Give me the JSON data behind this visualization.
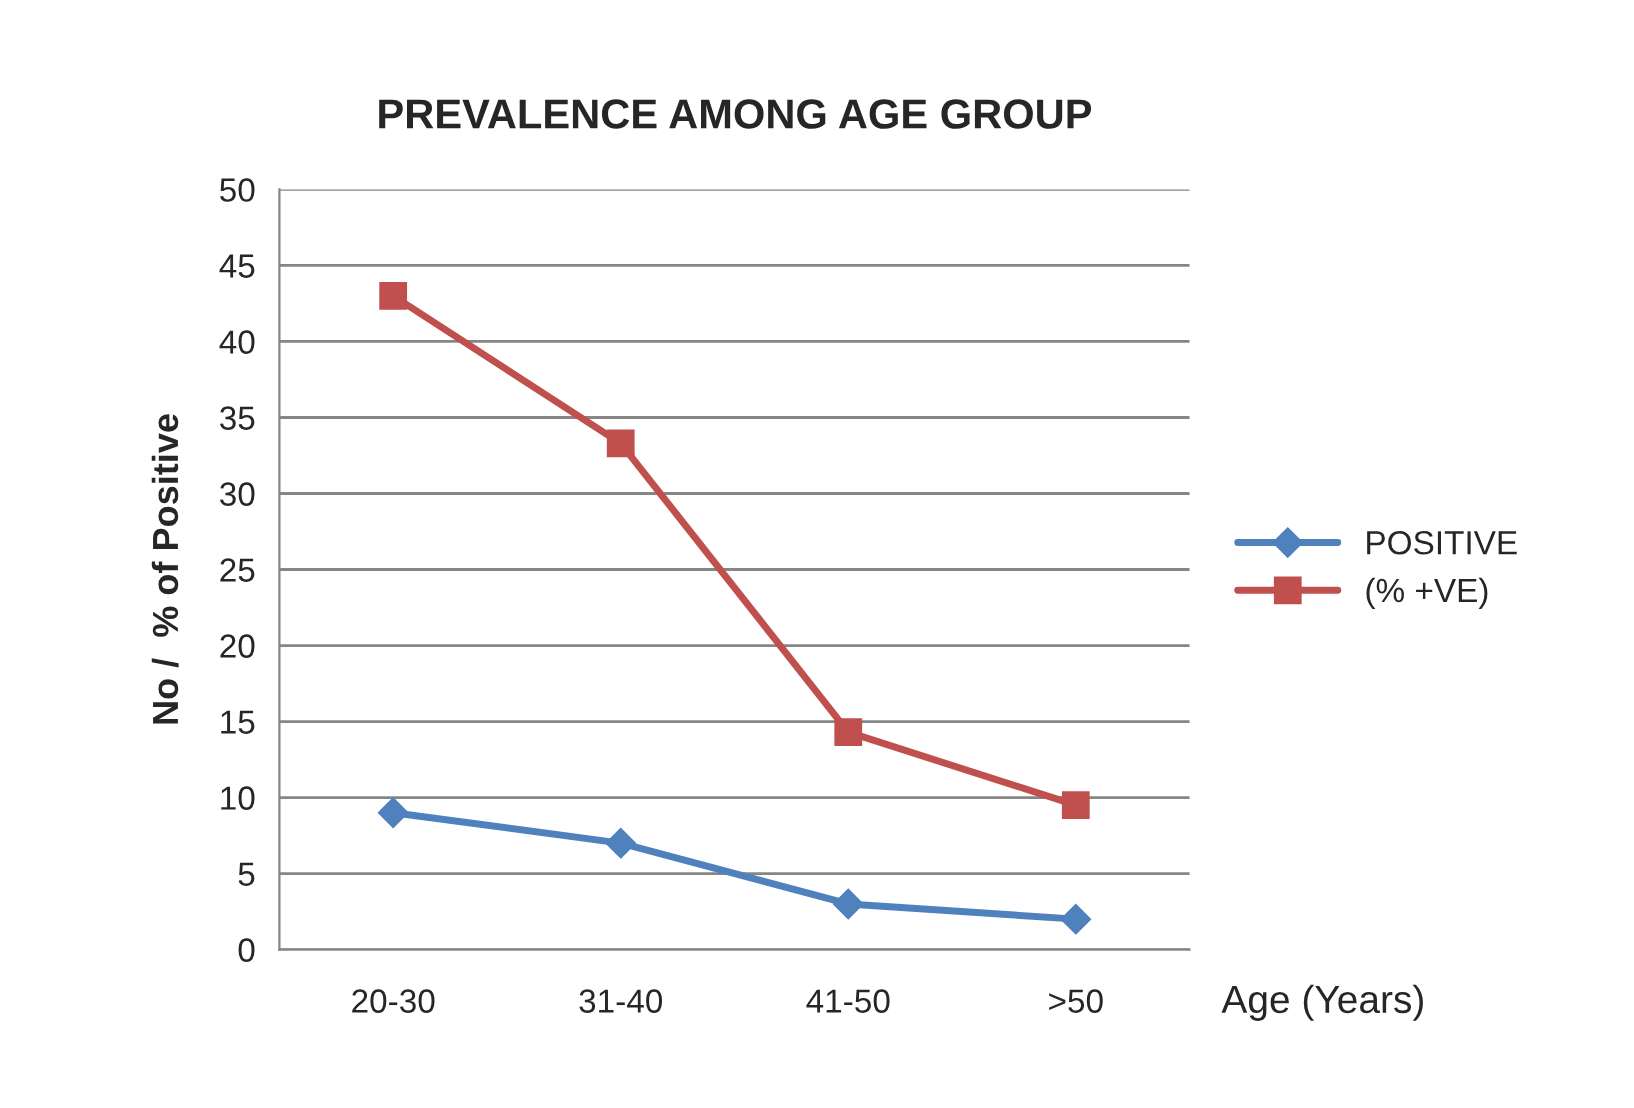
{
  "chart_data": {
    "type": "line",
    "title": "PREVALENCE AMONG AGE GROUP",
    "xlabel": "Age (Years)",
    "ylabel": "No /  % of Positive",
    "categories": [
      "20-30",
      "31-40",
      "41-50",
      ">50"
    ],
    "series": [
      {
        "name": "POSITIVE",
        "color": "#4f81bd",
        "values": [
          9,
          7,
          3,
          2
        ],
        "marker": "diamond"
      },
      {
        "name": "(% +VE)",
        "color": "#c0504d",
        "values": [
          43,
          33.3,
          14.3,
          9.5
        ],
        "marker": "square"
      }
    ],
    "ylim": [
      0,
      50
    ],
    "yticks": [
      0,
      5,
      10,
      15,
      20,
      25,
      30,
      35,
      40,
      45,
      50
    ],
    "grid": "y",
    "legend": "right",
    "line_style": "solid"
  }
}
